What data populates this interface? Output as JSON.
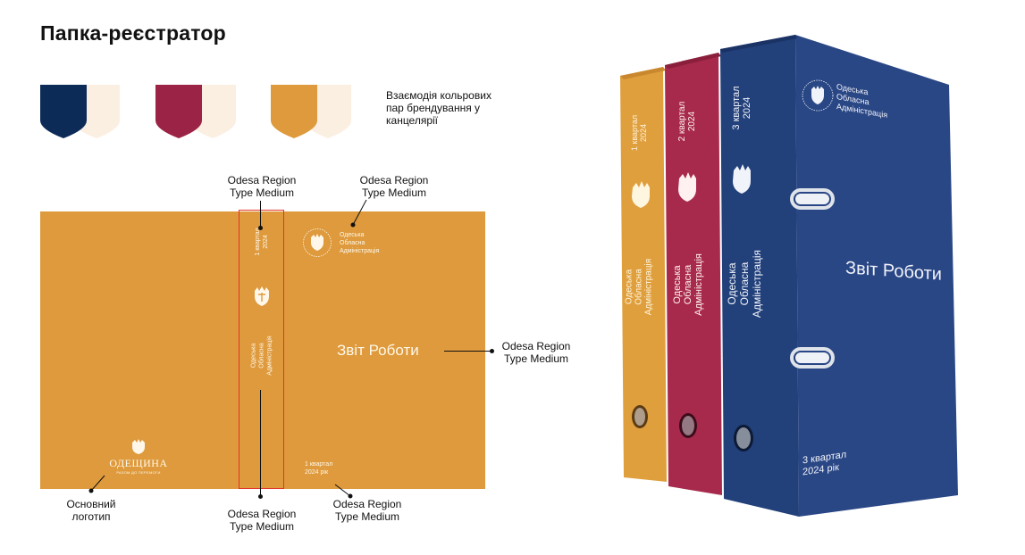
{
  "page": {
    "title": "Папка-реєстратор",
    "swatch_note": [
      "Взаємодія кольрових",
      "пар брендування у",
      "канцелярії"
    ]
  },
  "colors": {
    "navy": "#0d2b57",
    "crimson": "#9b2345",
    "ochre": "#de9a3c",
    "cream": "#fbefe2",
    "binder_navy": "#223f75",
    "binder_crimson": "#a72a4c",
    "binder_ochre": "#e09f3d",
    "outline_red": "#e3332c"
  },
  "callouts": {
    "spine_top": [
      "Odesa Region",
      "Type Medium"
    ],
    "logo_top": [
      "Odesa Region",
      "Type Medium"
    ],
    "main_title": [
      "Odesa Region",
      "Type Medium"
    ],
    "spine_bottom": [
      "Odesa Region",
      "Type Medium"
    ],
    "quarter_bottom": [
      "Odesa Region",
      "Type Medium"
    ],
    "logo_main": [
      "Основний",
      "логотип"
    ]
  },
  "cover": {
    "spine_quarter": [
      "1 квартал",
      "2024"
    ],
    "spine_org": [
      "Одеська",
      "Обласна",
      "Адміністрація"
    ],
    "logo_org": [
      "Одеська",
      "Обласна",
      "Адміністрація"
    ],
    "main_title": "Звіт Роботи",
    "bottom_quarter": [
      "1 квартал",
      "2024 рік"
    ],
    "wordmark": "ОДЕЩИНА",
    "wordmark_sub": "РАЗОМ ДО ПЕРЕМОГИ"
  },
  "binders": {
    "ochre_spine": {
      "quarter": [
        "1 квартал",
        "2024"
      ],
      "org": [
        "Одеська",
        "Обласна",
        "Адміністрація"
      ]
    },
    "crimson_spine": {
      "quarter": [
        "2 квартал",
        "2024"
      ],
      "org": [
        "Одеська",
        "Обласна",
        "Адміністрація"
      ]
    },
    "navy_spine": {
      "quarter": [
        "3 квартал",
        "2024"
      ],
      "org": [
        "Одеська",
        "Обласна",
        "Адміністрація"
      ]
    },
    "navy_front": {
      "logo_org": [
        "Одеська",
        "Обласна",
        "Адміністрація"
      ],
      "title": "Звіт Роботи",
      "bottom": [
        "3 квартал",
        "2024 рік"
      ]
    }
  }
}
